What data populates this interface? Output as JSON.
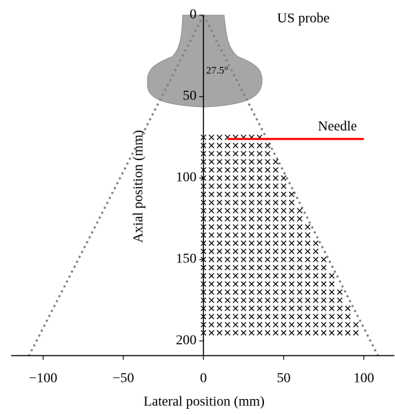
{
  "chart_data": {
    "type": "scatter",
    "xlabel": "Lateral position (mm)",
    "ylabel": "Axial position (mm)",
    "xlim": [
      -120,
      119
    ],
    "ylim": [
      0,
      209
    ],
    "y_inverted": true,
    "xticks": [
      {
        "value": -100,
        "label": "−100"
      },
      {
        "value": -50,
        "label": "−50"
      },
      0,
      50,
      100
    ],
    "yticks": [
      0,
      50,
      100,
      150,
      200
    ],
    "marker_color": "#000000",
    "grid_rows": [
      {
        "y": 75,
        "x": [
          0,
          5,
          10,
          15,
          20,
          25,
          30,
          35
        ]
      },
      {
        "y": 80,
        "x": [
          0,
          5,
          10,
          15,
          20,
          25,
          30,
          35,
          40
        ]
      },
      {
        "y": 85,
        "x": [
          0,
          5,
          10,
          15,
          20,
          25,
          30,
          35,
          40
        ]
      },
      {
        "y": 90,
        "x": [
          0,
          5,
          10,
          15,
          20,
          25,
          30,
          35,
          40,
          45
        ]
      },
      {
        "y": 95,
        "x": [
          0,
          5,
          10,
          15,
          20,
          25,
          30,
          35,
          40,
          45
        ]
      },
      {
        "y": 100,
        "x": [
          0,
          5,
          10,
          15,
          20,
          25,
          30,
          35,
          40,
          45,
          50
        ]
      },
      {
        "y": 105,
        "x": [
          0,
          5,
          10,
          15,
          20,
          25,
          30,
          35,
          40,
          45,
          50
        ]
      },
      {
        "y": 110,
        "x": [
          0,
          5,
          10,
          15,
          20,
          25,
          30,
          35,
          40,
          45,
          50,
          55
        ]
      },
      {
        "y": 115,
        "x": [
          0,
          5,
          10,
          15,
          20,
          25,
          30,
          35,
          40,
          45,
          50,
          55
        ]
      },
      {
        "y": 120,
        "x": [
          0,
          5,
          10,
          15,
          20,
          25,
          30,
          35,
          40,
          45,
          50,
          55,
          60
        ]
      },
      {
        "y": 125,
        "x": [
          0,
          5,
          10,
          15,
          20,
          25,
          30,
          35,
          40,
          45,
          50,
          55,
          60
        ]
      },
      {
        "y": 130,
        "x": [
          0,
          5,
          10,
          15,
          20,
          25,
          30,
          35,
          40,
          45,
          50,
          55,
          60,
          65
        ]
      },
      {
        "y": 135,
        "x": [
          0,
          5,
          10,
          15,
          20,
          25,
          30,
          35,
          40,
          45,
          50,
          55,
          60,
          65
        ]
      },
      {
        "y": 140,
        "x": [
          0,
          5,
          10,
          15,
          20,
          25,
          30,
          35,
          40,
          45,
          50,
          55,
          60,
          65,
          70
        ]
      },
      {
        "y": 145,
        "x": [
          0,
          5,
          10,
          15,
          20,
          25,
          30,
          35,
          40,
          45,
          50,
          55,
          60,
          65,
          70
        ]
      },
      {
        "y": 150,
        "x": [
          0,
          5,
          10,
          15,
          20,
          25,
          30,
          35,
          40,
          45,
          50,
          55,
          60,
          65,
          70,
          75
        ]
      },
      {
        "y": 155,
        "x": [
          0,
          5,
          10,
          15,
          20,
          25,
          30,
          35,
          40,
          45,
          50,
          55,
          60,
          65,
          70,
          75
        ]
      },
      {
        "y": 160,
        "x": [
          0,
          5,
          10,
          15,
          20,
          25,
          30,
          35,
          40,
          45,
          50,
          55,
          60,
          65,
          70,
          75,
          80
        ]
      },
      {
        "y": 165,
        "x": [
          0,
          5,
          10,
          15,
          20,
          25,
          30,
          35,
          40,
          45,
          50,
          55,
          60,
          65,
          70,
          75,
          80
        ]
      },
      {
        "y": 170,
        "x": [
          0,
          5,
          10,
          15,
          20,
          25,
          30,
          35,
          40,
          45,
          50,
          55,
          60,
          65,
          70,
          75,
          80,
          85
        ]
      },
      {
        "y": 175,
        "x": [
          0,
          5,
          10,
          15,
          20,
          25,
          30,
          35,
          40,
          45,
          50,
          55,
          60,
          65,
          70,
          75,
          80,
          85
        ]
      },
      {
        "y": 180,
        "x": [
          0,
          5,
          10,
          15,
          20,
          25,
          30,
          35,
          40,
          45,
          50,
          55,
          60,
          65,
          70,
          75,
          80,
          85,
          90
        ]
      },
      {
        "y": 185,
        "x": [
          0,
          5,
          10,
          15,
          20,
          25,
          30,
          35,
          40,
          45,
          50,
          55,
          60,
          65,
          70,
          75,
          80,
          85,
          90
        ]
      },
      {
        "y": 190,
        "x": [
          0,
          5,
          10,
          15,
          20,
          25,
          30,
          35,
          40,
          45,
          50,
          55,
          60,
          65,
          70,
          75,
          80,
          85,
          90,
          95
        ]
      },
      {
        "y": 195,
        "x": [
          0,
          5,
          10,
          15,
          20,
          25,
          30,
          35,
          40,
          45,
          50,
          55,
          60,
          65,
          70,
          75,
          80,
          85,
          90,
          95
        ]
      }
    ],
    "fan_angle": {
      "value": 27.5,
      "label": "27.5°"
    },
    "fan_color": "#808080",
    "needle": {
      "label": "Needle",
      "x": [
        15,
        100
      ],
      "y": 76,
      "color": "#ff0000"
    },
    "probe_label": "US probe",
    "probe_label_color": "#ff0000"
  }
}
